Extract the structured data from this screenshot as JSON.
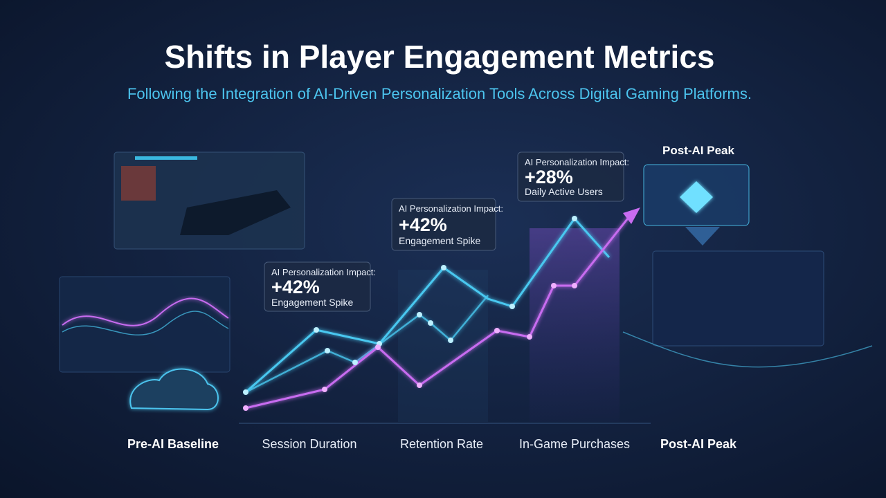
{
  "header": {
    "title": "Shifts in Player Engagement Metrics",
    "subtitle": "Following the Integration of AI-Driven Personalization Tools Across Digital Gaming Platforms."
  },
  "callouts": [
    {
      "heading": "AI Personalization Impact:",
      "value": "+42%",
      "label": "Engagement Spike"
    },
    {
      "heading": "AI Personalization Impact:",
      "value": "+42%",
      "label": "Engagement Spike"
    },
    {
      "heading": "AI Personalization Impact:",
      "value": "+28%",
      "label": "Daily Active Users"
    }
  ],
  "peak_label": "Post-AI Peak",
  "stages": [
    "Pre-AI Baseline",
    "Session Duration",
    "Retention Rate",
    "In-Game Purchases",
    "Post-AI Peak"
  ]
}
